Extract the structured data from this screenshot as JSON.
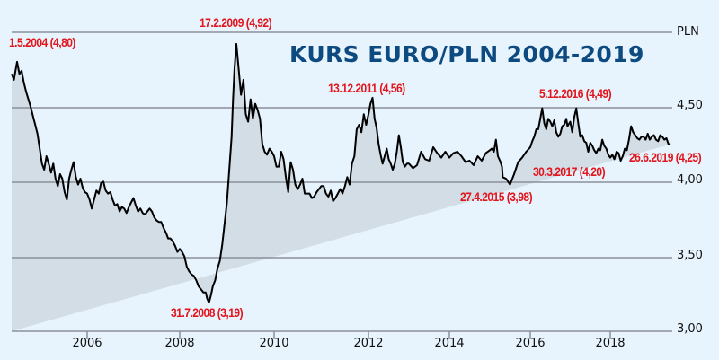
{
  "chart_data": {
    "type": "area",
    "title": "KURS EURO/PLN 2004-2019",
    "xlabel": "",
    "ylabel": "PLN",
    "ylim": [
      3.0,
      5.0
    ],
    "xlim": [
      2004.33,
      2019.49
    ],
    "grid": true,
    "legend": null,
    "yticks": [
      "3,00",
      "3,50",
      "4,00",
      "4,50"
    ],
    "xticks": [
      "2006",
      "2008",
      "2010",
      "2012",
      "2014",
      "2016",
      "2018"
    ],
    "colors": {
      "line": "#000000",
      "fill": "#d2dde6",
      "background": "#e8f4fd",
      "grid": "#8a9099",
      "annotation": "#e3141c",
      "title": "#0d4a7f"
    },
    "annotations": [
      {
        "text": "1.5.2004 (4,80)",
        "date": "2004-05-01",
        "value": 4.8
      },
      {
        "text": "17.2.2009 (4,92)",
        "date": "2009-02-17",
        "value": 4.92
      },
      {
        "text": "31.7.2008 (3,19)",
        "date": "2008-07-31",
        "value": 3.19
      },
      {
        "text": "13.12.2011 (4,56)",
        "date": "2011-12-13",
        "value": 4.56
      },
      {
        "text": "27.4.2015 (3,98)",
        "date": "2015-04-27",
        "value": 3.98
      },
      {
        "text": "5.12.2016 (4,49)",
        "date": "2016-12-05",
        "value": 4.49
      },
      {
        "text": "30.3.2017 (4,20)",
        "date": "2017-03-30",
        "value": 4.2
      },
      {
        "text": "26.6.2019 (4,25)",
        "date": "2019-06-26",
        "value": 4.25
      }
    ],
    "x": [
      2004.33,
      2004.38,
      2004.42,
      2004.45,
      2004.5,
      2004.55,
      2004.6,
      2004.65,
      2004.7,
      2004.75,
      2004.8,
      2004.85,
      2004.9,
      2004.95,
      2005.0,
      2005.05,
      2005.1,
      2005.15,
      2005.2,
      2005.25,
      2005.3,
      2005.35,
      2005.4,
      2005.45,
      2005.5,
      2005.55,
      2005.6,
      2005.65,
      2005.7,
      2005.75,
      2005.8,
      2005.85,
      2005.9,
      2005.95,
      2006.0,
      2006.05,
      2006.1,
      2006.15,
      2006.2,
      2006.25,
      2006.3,
      2006.35,
      2006.4,
      2006.45,
      2006.5,
      2006.55,
      2006.6,
      2006.65,
      2006.7,
      2006.75,
      2006.8,
      2006.85,
      2006.9,
      2006.95,
      2007.0,
      2007.05,
      2007.1,
      2007.15,
      2007.2,
      2007.25,
      2007.3,
      2007.35,
      2007.4,
      2007.45,
      2007.5,
      2007.55,
      2007.6,
      2007.65,
      2007.7,
      2007.75,
      2007.8,
      2007.85,
      2007.9,
      2007.95,
      2008.0,
      2008.05,
      2008.1,
      2008.15,
      2008.2,
      2008.25,
      2008.3,
      2008.35,
      2008.4,
      2008.45,
      2008.5,
      2008.55,
      2008.58,
      2008.62,
      2008.66,
      2008.7,
      2008.75,
      2008.8,
      2008.85,
      2008.9,
      2008.95,
      2009.0,
      2009.05,
      2009.1,
      2009.13,
      2009.16,
      2009.2,
      2009.25,
      2009.3,
      2009.35,
      2009.4,
      2009.45,
      2009.5,
      2009.55,
      2009.6,
      2009.65,
      2009.7,
      2009.75,
      2009.8,
      2009.85,
      2009.9,
      2009.95,
      2010.0,
      2010.05,
      2010.1,
      2010.15,
      2010.2,
      2010.25,
      2010.3,
      2010.35,
      2010.4,
      2010.45,
      2010.5,
      2010.55,
      2010.6,
      2010.65,
      2010.7,
      2010.75,
      2010.8,
      2010.85,
      2010.9,
      2010.95,
      2011.0,
      2011.05,
      2011.1,
      2011.15,
      2011.2,
      2011.25,
      2011.3,
      2011.35,
      2011.4,
      2011.45,
      2011.5,
      2011.55,
      2011.6,
      2011.65,
      2011.7,
      2011.75,
      2011.8,
      2011.85,
      2011.9,
      2011.95,
      2012.0,
      2012.05,
      2012.1,
      2012.15,
      2012.2,
      2012.25,
      2012.3,
      2012.35,
      2012.4,
      2012.45,
      2012.5,
      2012.55,
      2012.6,
      2012.65,
      2012.7,
      2012.75,
      2012.8,
      2012.85,
      2012.9,
      2012.95,
      2013.0,
      2013.1,
      2013.2,
      2013.3,
      2013.4,
      2013.5,
      2013.6,
      2013.7,
      2013.8,
      2013.9,
      2014.0,
      2014.1,
      2014.2,
      2014.3,
      2014.4,
      2014.5,
      2014.6,
      2014.7,
      2014.8,
      2014.9,
      2015.0,
      2015.05,
      2015.1,
      2015.15,
      2015.2,
      2015.25,
      2015.3,
      2015.32,
      2015.4,
      2015.5,
      2015.6,
      2015.7,
      2015.8,
      2015.9,
      2016.0,
      2016.05,
      2016.1,
      2016.15,
      2016.2,
      2016.25,
      2016.3,
      2016.35,
      2016.4,
      2016.45,
      2016.5,
      2016.55,
      2016.6,
      2016.65,
      2016.7,
      2016.75,
      2016.8,
      2016.85,
      2016.9,
      2016.93,
      2017.0,
      2017.05,
      2017.1,
      2017.15,
      2017.2,
      2017.25,
      2017.3,
      2017.35,
      2017.4,
      2017.45,
      2017.5,
      2017.55,
      2017.6,
      2017.65,
      2017.7,
      2017.75,
      2017.8,
      2017.85,
      2017.9,
      2017.95,
      2018.0,
      2018.05,
      2018.1,
      2018.15,
      2018.2,
      2018.25,
      2018.3,
      2018.35,
      2018.4,
      2018.45,
      2018.5,
      2018.55,
      2018.6,
      2018.65,
      2018.7,
      2018.75,
      2018.8,
      2018.85,
      2018.9,
      2018.95,
      2019.0,
      2019.05,
      2019.1,
      2019.15,
      2019.2,
      2019.25,
      2019.3,
      2019.35,
      2019.4,
      2019.45,
      2019.49
    ],
    "values": [
      4.72,
      4.68,
      4.75,
      4.8,
      4.72,
      4.74,
      4.66,
      4.6,
      4.55,
      4.5,
      4.44,
      4.38,
      4.32,
      4.22,
      4.12,
      4.08,
      4.17,
      4.12,
      4.06,
      4.12,
      4.02,
      3.97,
      4.05,
      4.02,
      3.93,
      3.88,
      4.02,
      4.08,
      4.13,
      4.03,
      3.98,
      4.02,
      3.96,
      3.93,
      3.92,
      3.88,
      3.82,
      3.88,
      3.94,
      3.92,
      3.99,
      4.0,
      3.94,
      3.92,
      3.93,
      3.88,
      3.84,
      3.85,
      3.8,
      3.83,
      3.82,
      3.79,
      3.83,
      3.86,
      3.89,
      3.84,
      3.8,
      3.82,
      3.79,
      3.78,
      3.8,
      3.82,
      3.8,
      3.76,
      3.74,
      3.73,
      3.73,
      3.69,
      3.66,
      3.62,
      3.62,
      3.6,
      3.57,
      3.53,
      3.55,
      3.53,
      3.5,
      3.43,
      3.4,
      3.38,
      3.37,
      3.34,
      3.3,
      3.28,
      3.26,
      3.26,
      3.22,
      3.19,
      3.24,
      3.3,
      3.34,
      3.42,
      3.47,
      3.58,
      3.72,
      3.86,
      4.08,
      4.3,
      4.55,
      4.75,
      4.92,
      4.75,
      4.58,
      4.68,
      4.45,
      4.4,
      4.55,
      4.42,
      4.52,
      4.48,
      4.42,
      4.25,
      4.2,
      4.18,
      4.22,
      4.2,
      4.17,
      4.1,
      4.1,
      4.2,
      4.15,
      4.03,
      3.93,
      4.13,
      4.08,
      3.98,
      3.95,
      3.98,
      4.02,
      3.92,
      3.92,
      3.92,
      3.89,
      3.9,
      3.93,
      3.95,
      3.97,
      3.97,
      3.92,
      3.9,
      3.94,
      3.87,
      3.89,
      3.92,
      3.95,
      3.92,
      3.97,
      4.03,
      3.98,
      4.12,
      4.17,
      4.35,
      4.38,
      4.33,
      4.45,
      4.38,
      4.45,
      4.52,
      4.56,
      4.42,
      4.36,
      4.25,
      4.18,
      4.12,
      4.17,
      4.22,
      4.15,
      4.12,
      4.08,
      4.12,
      4.2,
      4.31,
      4.23,
      4.13,
      4.1,
      4.12,
      4.12,
      4.09,
      4.11,
      4.2,
      4.15,
      4.14,
      4.23,
      4.19,
      4.16,
      4.2,
      4.16,
      4.19,
      4.2,
      4.17,
      4.13,
      4.14,
      4.11,
      4.17,
      4.14,
      4.19,
      4.21,
      4.22,
      4.2,
      4.28,
      4.17,
      4.14,
      4.1,
      4.03,
      4.02,
      3.98,
      4.05,
      4.13,
      4.16,
      4.2,
      4.23,
      4.27,
      4.3,
      4.35,
      4.35,
      4.42,
      4.49,
      4.39,
      4.35,
      4.42,
      4.4,
      4.37,
      4.41,
      4.33,
      4.3,
      4.32,
      4.37,
      4.38,
      4.42,
      4.37,
      4.4,
      4.33,
      4.43,
      4.49,
      4.39,
      4.3,
      4.31,
      4.27,
      4.26,
      4.2,
      4.26,
      4.24,
      4.21,
      4.19,
      4.22,
      4.21,
      4.28,
      4.24,
      4.22,
      4.18,
      4.16,
      4.18,
      4.15,
      4.2,
      4.19,
      4.14,
      4.17,
      4.22,
      4.21,
      4.28,
      4.37,
      4.33,
      4.31,
      4.29,
      4.28,
      4.3,
      4.3,
      4.28,
      4.32,
      4.28,
      4.3,
      4.31,
      4.28,
      4.27,
      4.31,
      4.3,
      4.28,
      4.29,
      4.25,
      4.25
    ]
  },
  "title": "KURS EURO/PLN 2004-2019",
  "axis": {
    "unit": "PLN",
    "y": [
      "4,50",
      "4,00",
      "3,50",
      "3,00"
    ],
    "x": [
      "2006",
      "2008",
      "2010",
      "2012",
      "2014",
      "2016",
      "2018"
    ]
  },
  "annotations": {
    "a2004": "1.5.2004 (4,80)",
    "a2009": "17.2.2009 (4,92)",
    "a2008": "31.7.2008 (3,19)",
    "a2011": "13.12.2011 (4,56)",
    "a2015": "27.4.2015 (3,98)",
    "a2016": "5.12.2016 (4,49)",
    "a2017": "30.3.2017 (4,20)",
    "a2019": "26.6.2019 (4,25)"
  }
}
